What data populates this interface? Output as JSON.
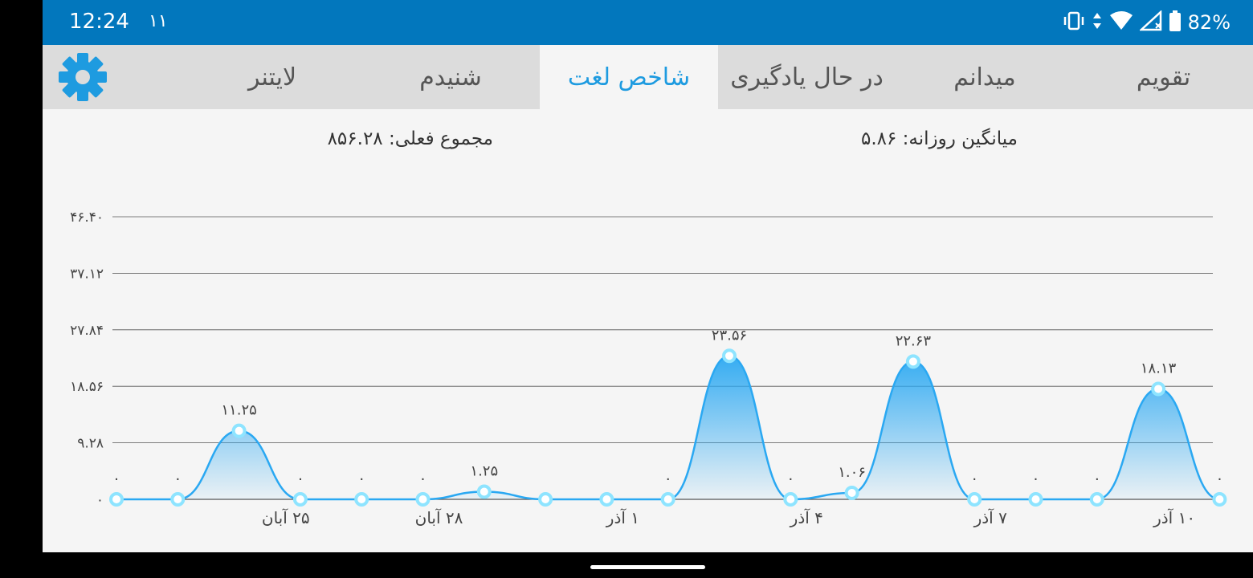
{
  "status": {
    "time": "12:24",
    "notification": "۱۱",
    "battery": "82%",
    "icons": [
      "vibrate-icon",
      "data-arrows-icon",
      "wifi-icon",
      "signal-icon",
      "battery-icon"
    ]
  },
  "tabs": [
    {
      "label": "تقویم",
      "active": false
    },
    {
      "label": "میدانم",
      "active": false
    },
    {
      "label": "در حال یادگیری",
      "active": false
    },
    {
      "label": "شاخص لغت",
      "active": true
    },
    {
      "label": "شنیدم",
      "active": false
    },
    {
      "label": "لایتنر",
      "active": false
    }
  ],
  "settings_icon": "gear-icon",
  "stats": {
    "daily_average": "میانگین روزانه: ۵.۸۶",
    "current_total": "مجموع فعلی: ۸۵۶.۲۸"
  },
  "colors": {
    "status_bar": "#0277bd",
    "tab_bar": "#dcdcdc",
    "active_tab_text": "#1e9be0",
    "line": "#2aa8f2",
    "point": "#8ee4ff"
  },
  "chart_data": {
    "type": "area",
    "ylim": [
      0,
      46.4
    ],
    "y_ticks": [
      {
        "value": 0,
        "label": "۰"
      },
      {
        "value": 9.28,
        "label": "۹.۲۸"
      },
      {
        "value": 18.56,
        "label": "۱۸.۵۶"
      },
      {
        "value": 27.84,
        "label": "۲۷.۸۴"
      },
      {
        "value": 37.12,
        "label": "۳۷.۱۲"
      },
      {
        "value": 46.4,
        "label": "۴۶.۴۰"
      }
    ],
    "values": [
      0,
      0,
      11.25,
      0,
      0,
      0,
      1.25,
      0,
      0,
      0,
      23.56,
      0,
      1.06,
      22.63,
      0,
      0,
      0,
      18.13,
      0
    ],
    "value_labels": [
      "۰",
      "۰",
      "۱۱.۲۵",
      "۰",
      "۰",
      "۰",
      "۱.۲۵",
      "",
      "",
      "۰",
      "۲۳.۵۶",
      "۰",
      "۱.۰۶",
      "۲۲.۶۳",
      "۰",
      "۰",
      "۰",
      "۱۸.۱۳",
      "۰"
    ],
    "x_tick_labels": [
      {
        "index": 2.5,
        "label": "۲۵ آبان"
      },
      {
        "index": 5,
        "label": "۲۸ آبان"
      },
      {
        "index": 8,
        "label": "۱ آذر"
      },
      {
        "index": 11,
        "label": "۴ آذر"
      },
      {
        "index": 14,
        "label": "۷ آذر"
      },
      {
        "index": 17,
        "label": "۱۰ آذر"
      }
    ],
    "grid": true
  }
}
